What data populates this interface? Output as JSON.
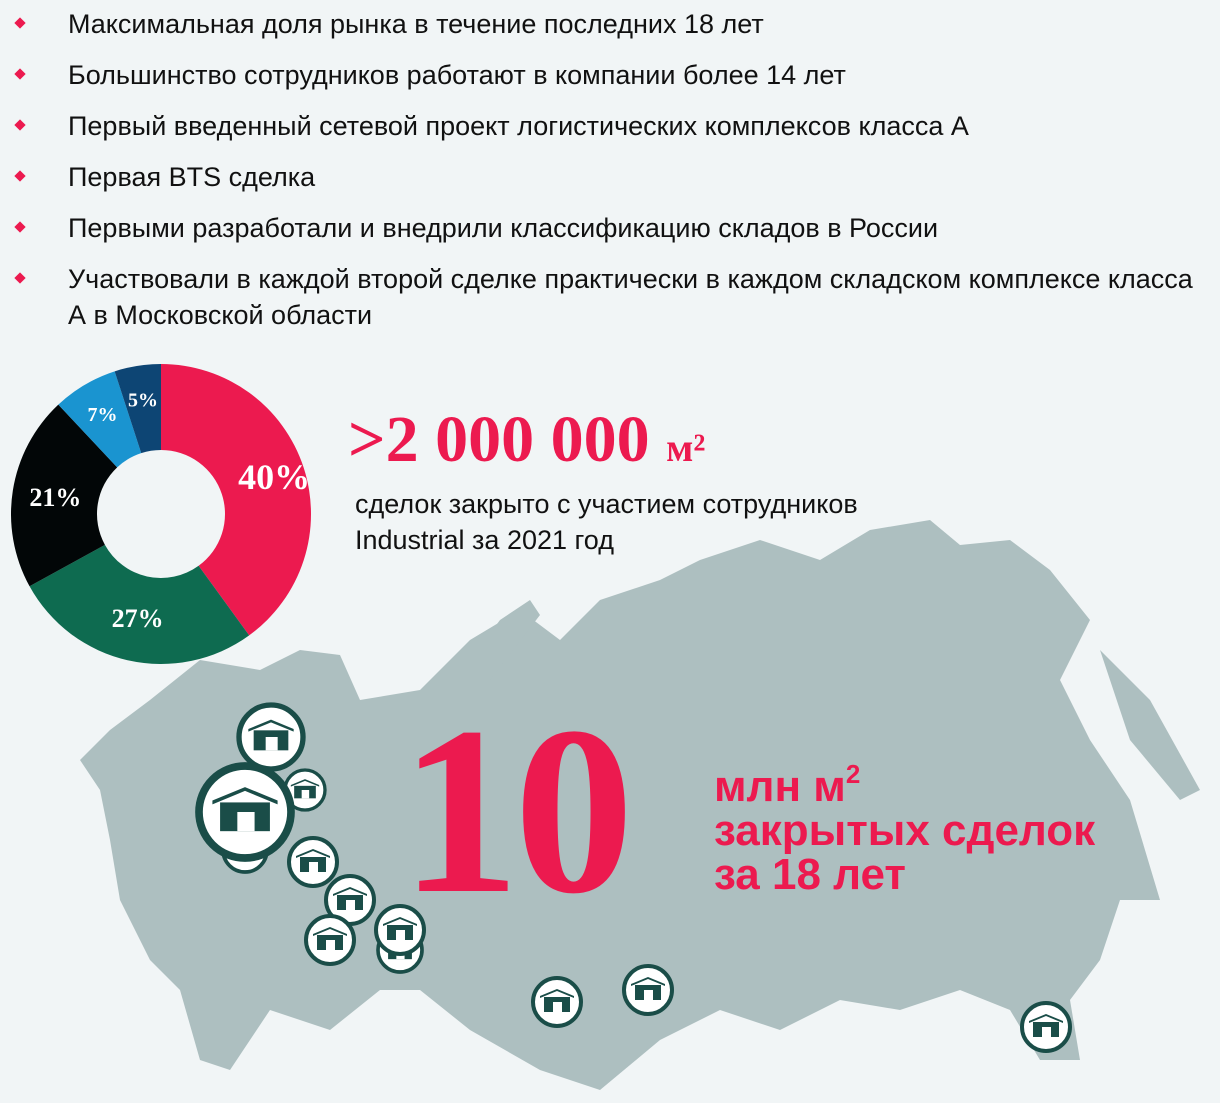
{
  "bullets": [
    "Максимальная доля рынка в течение последних 18 лет",
    "Большинство сотрудников работают в компании более 14 лет",
    "Первый введенный сетевой проект логистических комплексов класса А",
    "Первая BTS сделка",
    "Первыми разработали и внедрили классификацию складов в России",
    "Участвовали в каждой второй сделке практически в каждом складском комплексе класса А в Московской области"
  ],
  "stat_area": {
    "value": ">2 000 000",
    "unit": "м²",
    "caption": "сделок закрыто с участием сотрудников Industrial за 2021 год"
  },
  "stat_total": {
    "value": "10",
    "line1": "млн м",
    "sup": "2",
    "line2": "закрытых сделок",
    "line3": "за 18 лет"
  },
  "colors": {
    "accent": "#ec1a4f",
    "map": "#adbfc0",
    "marker": "#1a4d48",
    "background": "#f1f5f6"
  },
  "map_marker_icon": "warehouse-icon",
  "chart_data": {
    "type": "pie",
    "donut": true,
    "values": [
      40,
      27,
      21,
      7,
      5
    ],
    "labels": [
      "40%",
      "27%",
      "21%",
      "7%",
      "5%"
    ],
    "colors": [
      "#ec1a4f",
      "#0e6b50",
      "#020607",
      "#1a94d0",
      "#0d4574"
    ]
  }
}
